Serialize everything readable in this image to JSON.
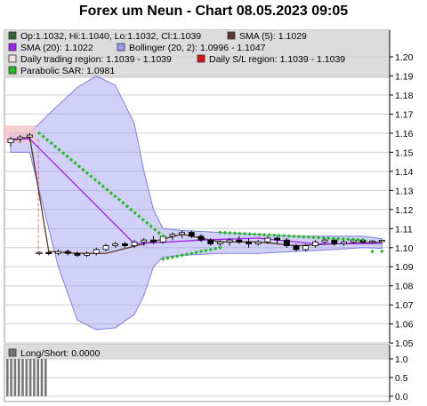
{
  "title": "Forex um Neun - Chart 08.05.2023 09:05",
  "chart_data": [
    {
      "type": "line",
      "panel": "price",
      "ylim": [
        1.05,
        1.205
      ],
      "y_ticks": [
        1.05,
        1.06,
        1.07,
        1.08,
        1.09,
        1.1,
        1.11,
        1.12,
        1.13,
        1.14,
        1.15,
        1.16,
        1.17,
        1.18,
        1.19,
        1.2
      ],
      "grid": true,
      "legend_position": "top",
      "legend": [
        {
          "text": "Op:1.1032, Hi:1.1040, Lo:1.1032, Cl:1.1039",
          "color": "#2e6b2e"
        },
        {
          "text": "SMA (5): 1.1029",
          "color": "#5a3a2a"
        },
        {
          "text": "SMA (20): 1.1022",
          "color": "#a020f0"
        },
        {
          "text": "Bollinger (20, 2): 1.0996 - 1.1047",
          "color": "#9999ee"
        },
        {
          "text": "Daily trading region: 1.1039 - 1.1039",
          "color": "#f4dede"
        },
        {
          "text": "Daily S/L region: 1.1039 - 1.1039",
          "color": "#dd1111"
        },
        {
          "text": "Parabolic SAR: 1.0981",
          "color": "#22bb22"
        }
      ],
      "x": [
        0,
        1,
        2,
        3,
        4,
        5,
        6,
        7,
        8,
        9,
        10,
        11,
        12,
        13,
        14,
        15,
        16,
        17,
        18,
        19,
        20,
        21,
        22,
        23,
        24,
        25,
        26,
        27,
        28,
        29,
        30,
        31,
        32,
        33,
        34,
        35,
        36,
        37,
        38,
        39
      ],
      "candles": [
        {
          "o": 1.155,
          "h": 1.158,
          "l": 1.153,
          "c": 1.157
        },
        {
          "o": 1.157,
          "h": 1.159,
          "l": 1.155,
          "c": 1.158
        },
        {
          "o": 1.158,
          "h": 1.16,
          "l": 1.156,
          "c": 1.159
        },
        {
          "o": 1.097,
          "h": 1.098,
          "l": 1.096,
          "c": 1.0975
        },
        {
          "o": 1.0975,
          "h": 1.098,
          "l": 1.096,
          "c": 1.097
        },
        {
          "o": 1.097,
          "h": 1.099,
          "l": 1.096,
          "c": 1.098
        },
        {
          "o": 1.098,
          "h": 1.099,
          "l": 1.096,
          "c": 1.097
        },
        {
          "o": 1.097,
          "h": 1.098,
          "l": 1.095,
          "c": 1.096
        },
        {
          "o": 1.096,
          "h": 1.098,
          "l": 1.095,
          "c": 1.097
        },
        {
          "o": 1.097,
          "h": 1.1,
          "l": 1.096,
          "c": 1.099
        },
        {
          "o": 1.099,
          "h": 1.102,
          "l": 1.098,
          "c": 1.101
        },
        {
          "o": 1.101,
          "h": 1.103,
          "l": 1.1,
          "c": 1.102
        },
        {
          "o": 1.102,
          "h": 1.103,
          "l": 1.1,
          "c": 1.101
        },
        {
          "o": 1.101,
          "h": 1.104,
          "l": 1.1,
          "c": 1.103
        },
        {
          "o": 1.103,
          "h": 1.105,
          "l": 1.101,
          "c": 1.104
        },
        {
          "o": 1.104,
          "h": 1.106,
          "l": 1.102,
          "c": 1.103
        },
        {
          "o": 1.103,
          "h": 1.107,
          "l": 1.102,
          "c": 1.106
        },
        {
          "o": 1.106,
          "h": 1.108,
          "l": 1.104,
          "c": 1.107
        },
        {
          "o": 1.107,
          "h": 1.109,
          "l": 1.105,
          "c": 1.108
        },
        {
          "o": 1.108,
          "h": 1.109,
          "l": 1.105,
          "c": 1.106
        },
        {
          "o": 1.106,
          "h": 1.107,
          "l": 1.103,
          "c": 1.104
        },
        {
          "o": 1.104,
          "h": 1.105,
          "l": 1.101,
          "c": 1.102
        },
        {
          "o": 1.102,
          "h": 1.104,
          "l": 1.1,
          "c": 1.103
        },
        {
          "o": 1.103,
          "h": 1.105,
          "l": 1.101,
          "c": 1.104
        },
        {
          "o": 1.104,
          "h": 1.106,
          "l": 1.102,
          "c": 1.103
        },
        {
          "o": 1.103,
          "h": 1.105,
          "l": 1.1,
          "c": 1.102
        },
        {
          "o": 1.102,
          "h": 1.104,
          "l": 1.101,
          "c": 1.103
        },
        {
          "o": 1.103,
          "h": 1.106,
          "l": 1.102,
          "c": 1.105
        },
        {
          "o": 1.105,
          "h": 1.106,
          "l": 1.102,
          "c": 1.104
        },
        {
          "o": 1.104,
          "h": 1.105,
          "l": 1.1,
          "c": 1.101
        },
        {
          "o": 1.101,
          "h": 1.102,
          "l": 1.098,
          "c": 1.099
        },
        {
          "o": 1.099,
          "h": 1.102,
          "l": 1.098,
          "c": 1.101
        },
        {
          "o": 1.101,
          "h": 1.104,
          "l": 1.1,
          "c": 1.103
        },
        {
          "o": 1.103,
          "h": 1.105,
          "l": 1.102,
          "c": 1.104
        },
        {
          "o": 1.104,
          "h": 1.105,
          "l": 1.101,
          "c": 1.102
        },
        {
          "o": 1.102,
          "h": 1.104,
          "l": 1.101,
          "c": 1.103
        },
        {
          "o": 1.103,
          "h": 1.105,
          "l": 1.102,
          "c": 1.104
        },
        {
          "o": 1.104,
          "h": 1.105,
          "l": 1.102,
          "c": 1.103
        },
        {
          "o": 1.103,
          "h": 1.104,
          "l": 1.102,
          "c": 1.1035
        },
        {
          "o": 1.1032,
          "h": 1.104,
          "l": 1.1032,
          "c": 1.1039
        }
      ],
      "series": [
        {
          "name": "SMA (5)",
          "color": "#5a3a2a",
          "points": [
            [
              0,
              1.156
            ],
            [
              2,
              1.158
            ],
            [
              4,
              1.098
            ],
            [
              7,
              1.097
            ],
            [
              10,
              1.097
            ],
            [
              14,
              1.102
            ],
            [
              18,
              1.107
            ],
            [
              22,
              1.103
            ],
            [
              26,
              1.103
            ],
            [
              30,
              1.101
            ],
            [
              34,
              1.102
            ],
            [
              39,
              1.1029
            ]
          ]
        },
        {
          "name": "SMA (20)",
          "color": "#a020f0",
          "points": [
            [
              0,
              1.157
            ],
            [
              2,
              1.157
            ],
            [
              13,
              1.102
            ],
            [
              20,
              1.104
            ],
            [
              26,
              1.105
            ],
            [
              32,
              1.102
            ],
            [
              39,
              1.1022
            ]
          ]
        }
      ],
      "bollinger": {
        "upper": [
          [
            0,
            1.16
          ],
          [
            2,
            1.16
          ],
          [
            4,
            1.17
          ],
          [
            7,
            1.184
          ],
          [
            9,
            1.19
          ],
          [
            11,
            1.185
          ],
          [
            13,
            1.165
          ],
          [
            14,
            1.14
          ],
          [
            15,
            1.12
          ],
          [
            16,
            1.11
          ],
          [
            18,
            1.109
          ],
          [
            22,
            1.108
          ],
          [
            26,
            1.107
          ],
          [
            30,
            1.106
          ],
          [
            34,
            1.106
          ],
          [
            37,
            1.106
          ],
          [
            39,
            1.1047
          ]
        ],
        "lower": [
          [
            39,
            1.0996
          ],
          [
            37,
            1.1
          ],
          [
            34,
            1.099
          ],
          [
            30,
            1.098
          ],
          [
            26,
            1.097
          ],
          [
            22,
            1.097
          ],
          [
            18,
            1.096
          ],
          [
            16,
            1.095
          ],
          [
            15,
            1.09
          ],
          [
            14,
            1.075
          ],
          [
            13,
            1.065
          ],
          [
            11,
            1.058
          ],
          [
            9,
            1.057
          ],
          [
            7,
            1.062
          ],
          [
            5,
            1.09
          ],
          [
            3,
            1.13
          ],
          [
            2,
            1.15
          ],
          [
            0,
            1.15
          ]
        ]
      },
      "sar": [
        {
          "from": [
            3,
            1.16
          ],
          "to": [
            16,
            1.106
          ],
          "n": 32
        },
        {
          "from": [
            16,
            1.094
          ],
          "to": [
            22,
            1.1
          ],
          "n": 13
        },
        {
          "from": [
            22,
            1.108
          ],
          "to": [
            37,
            1.104
          ],
          "n": 30
        },
        {
          "from": [
            38,
            1.098
          ],
          "to": [
            39,
            1.0981
          ],
          "n": 2
        }
      ],
      "daily_trading_region": {
        "x": [
          0,
          3
        ],
        "y": [
          1.155,
          1.164
        ]
      },
      "daily_sl_line": {
        "x": [
          3,
          3
        ],
        "y": [
          1.097,
          1.157
        ],
        "color": "#ff6666"
      }
    },
    {
      "type": "bar",
      "panel": "long_short",
      "legend": [
        {
          "text": "Long/Short: 0.0000",
          "color": "#777777"
        }
      ],
      "ylim": [
        0,
        1.1
      ],
      "y_ticks": [
        "0.0",
        "0.5",
        "1.0"
      ],
      "values": [
        1,
        1,
        1,
        1,
        1,
        1,
        1,
        1,
        1,
        1,
        1,
        0,
        0,
        0,
        0,
        0,
        0,
        0,
        0,
        0,
        0,
        0,
        0,
        0,
        0,
        0,
        0,
        0,
        0,
        0,
        0,
        0,
        0,
        0,
        0,
        0,
        0,
        0,
        0,
        0
      ]
    }
  ]
}
